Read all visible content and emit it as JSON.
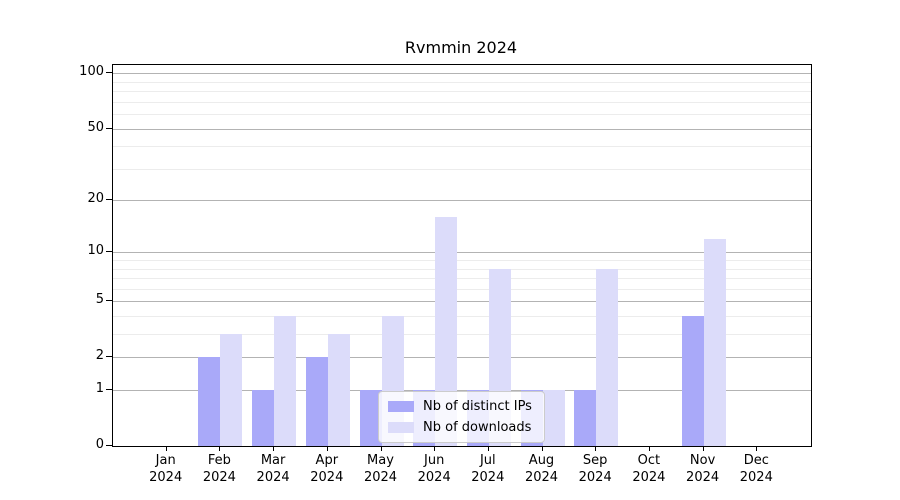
{
  "chart_data": {
    "type": "bar",
    "title": "Rvmmin 2024",
    "categories": [
      "Jan 2024",
      "Feb 2024",
      "Mar 2024",
      "Apr 2024",
      "May 2024",
      "Jun 2024",
      "Jul 2024",
      "Aug 2024",
      "Sep 2024",
      "Oct 2024",
      "Nov 2024",
      "Dec 2024"
    ],
    "series": [
      {
        "name": "Nb of distinct IPs",
        "color": "#a9a9f9",
        "values": [
          0,
          2,
          1,
          2,
          1,
          1,
          1,
          1,
          1,
          0,
          4,
          0
        ]
      },
      {
        "name": "Nb of downloads",
        "color": "#dcdcfa",
        "values": [
          0,
          3,
          4,
          3,
          4,
          16,
          8,
          1,
          8,
          0,
          12,
          0
        ]
      }
    ],
    "yscale": "log1p",
    "ylim": [
      0,
      110
    ],
    "y_major_ticks": [
      0,
      1,
      2,
      5,
      10,
      20,
      50,
      100
    ],
    "y_minor_ticks": [
      3,
      4,
      6,
      7,
      8,
      9,
      30,
      40,
      60,
      70,
      80,
      90
    ],
    "xlabel": "",
    "ylabel": "",
    "grid": true,
    "legend_position": "lower-center-inside",
    "colors": {
      "grid_major": "#b3b3b3",
      "grid_minor": "#ececec",
      "spine": "#000000"
    }
  }
}
